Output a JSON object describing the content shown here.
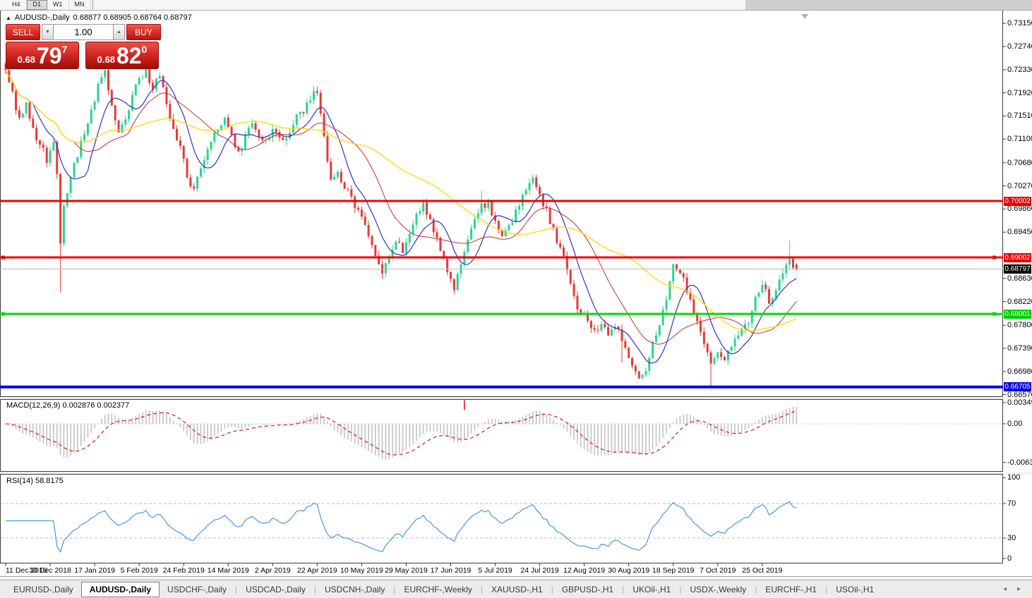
{
  "toolbar": {
    "timeframes": [
      "H4",
      "D1",
      "W1",
      "MN"
    ],
    "active": "D1"
  },
  "symbol_panel": {
    "collapse_icon": "▲",
    "title": "AUDUSD-,Daily",
    "ohlc_text": "0.68877 0.68905 0.68764 0.68797",
    "sell_label": "SELL",
    "buy_label": "BUY",
    "volume": "1.00",
    "sell_price": {
      "small": "0.68",
      "big": "79",
      "sup": "7"
    },
    "buy_price": {
      "small": "0.68",
      "big": "82",
      "sup": "0"
    }
  },
  "chart_data": {
    "type": "candlestick",
    "symbol": "AUDUSD",
    "timeframe": "Daily",
    "n_candles": 232,
    "last_candle": {
      "open": 0.68877,
      "high": 0.68905,
      "low": 0.68764,
      "close": 0.68797
    },
    "close_anchors": [
      [
        0,
        0.7232
      ],
      [
        2,
        0.7195
      ],
      [
        4,
        0.7148
      ],
      [
        6,
        0.7175
      ],
      [
        8,
        0.713
      ],
      [
        10,
        0.71
      ],
      [
        12,
        0.7068
      ],
      [
        14,
        0.7105
      ],
      [
        15,
        0.7048
      ],
      [
        16,
        0.6925
      ],
      [
        17,
        0.6992
      ],
      [
        19,
        0.7042
      ],
      [
        21,
        0.7078
      ],
      [
        23,
        0.7118
      ],
      [
        25,
        0.7162
      ],
      [
        27,
        0.7208
      ],
      [
        29,
        0.7232
      ],
      [
        31,
        0.717
      ],
      [
        33,
        0.7122
      ],
      [
        35,
        0.7145
      ],
      [
        37,
        0.7188
      ],
      [
        39,
        0.7218
      ],
      [
        41,
        0.7238
      ],
      [
        43,
        0.7198
      ],
      [
        45,
        0.7222
      ],
      [
        47,
        0.7172
      ],
      [
        49,
        0.7128
      ],
      [
        51,
        0.7098
      ],
      [
        53,
        0.7042
      ],
      [
        55,
        0.7022
      ],
      [
        57,
        0.7058
      ],
      [
        59,
        0.7092
      ],
      [
        61,
        0.7122
      ],
      [
        64,
        0.7148
      ],
      [
        66,
        0.7118
      ],
      [
        68,
        0.7088
      ],
      [
        70,
        0.7118
      ],
      [
        72,
        0.7138
      ],
      [
        75,
        0.7108
      ],
      [
        78,
        0.7128
      ],
      [
        81,
        0.7108
      ],
      [
        84,
        0.7135
      ],
      [
        86,
        0.7158
      ],
      [
        88,
        0.7175
      ],
      [
        91,
        0.7192
      ],
      [
        93,
        0.7115
      ],
      [
        95,
        0.7038
      ],
      [
        97,
        0.7052
      ],
      [
        99,
        0.7022
      ],
      [
        101,
        0.7008
      ],
      [
        103,
        0.6985
      ],
      [
        105,
        0.6958
      ],
      [
        107,
        0.6922
      ],
      [
        109,
        0.6888
      ],
      [
        110,
        0.6872
      ],
      [
        112,
        0.6902
      ],
      [
        114,
        0.6928
      ],
      [
        116,
        0.6908
      ],
      [
        118,
        0.6942
      ],
      [
        120,
        0.6978
      ],
      [
        122,
        0.6998
      ],
      [
        124,
        0.6968
      ],
      [
        126,
        0.6935
      ],
      [
        128,
        0.6898
      ],
      [
        130,
        0.6862
      ],
      [
        131,
        0.6842
      ],
      [
        133,
        0.6888
      ],
      [
        135,
        0.6932
      ],
      [
        137,
        0.6968
      ],
      [
        139,
        0.6996
      ],
      [
        141,
        0.6999
      ],
      [
        143,
        0.6965
      ],
      [
        145,
        0.6938
      ],
      [
        147,
        0.6958
      ],
      [
        149,
        0.6985
      ],
      [
        151,
        0.7012
      ],
      [
        153,
        0.7032
      ],
      [
        154,
        0.7042
      ],
      [
        156,
        0.7012
      ],
      [
        158,
        0.6988
      ],
      [
        160,
        0.6952
      ],
      [
        162,
        0.6918
      ],
      [
        164,
        0.6878
      ],
      [
        166,
        0.6832
      ],
      [
        168,
        0.6802
      ],
      [
        170,
        0.6788
      ],
      [
        172,
        0.6772
      ],
      [
        174,
        0.6782
      ],
      [
        176,
        0.6762
      ],
      [
        178,
        0.6778
      ],
      [
        180,
        0.6752
      ],
      [
        182,
        0.6722
      ],
      [
        184,
        0.6698
      ],
      [
        186,
        0.6692
      ],
      [
        188,
        0.6722
      ],
      [
        190,
        0.6762
      ],
      [
        192,
        0.6808
      ],
      [
        194,
        0.6858
      ],
      [
        195,
        0.6888
      ],
      [
        197,
        0.6872
      ],
      [
        199,
        0.6838
      ],
      [
        201,
        0.6802
      ],
      [
        203,
        0.6768
      ],
      [
        205,
        0.6732
      ],
      [
        206,
        0.6712
      ],
      [
        208,
        0.6732
      ],
      [
        210,
        0.6718
      ],
      [
        212,
        0.6742
      ],
      [
        214,
        0.6762
      ],
      [
        216,
        0.6782
      ],
      [
        218,
        0.6805
      ],
      [
        220,
        0.6838
      ],
      [
        221,
        0.6852
      ],
      [
        223,
        0.6818
      ],
      [
        225,
        0.6842
      ],
      [
        227,
        0.6872
      ],
      [
        229,
        0.6898
      ],
      [
        230,
        0.6882
      ],
      [
        231,
        0.68797
      ]
    ],
    "wick_overrides": {
      "16": {
        "low": 0.6838
      },
      "110": {
        "low": 0.6862
      },
      "122": {
        "high": 0.7003
      },
      "131": {
        "low": 0.6835
      },
      "139": {
        "high": 0.7018
      },
      "154": {
        "high": 0.7048
      },
      "180": {
        "low": 0.6714
      },
      "186": {
        "low": 0.6689
      },
      "206": {
        "low": 0.6671
      },
      "229": {
        "high": 0.693
      }
    },
    "moving_averages": [
      {
        "period": 9,
        "color": "#3232c8",
        "width": 1.2
      },
      {
        "period": 21,
        "color": "#c03030",
        "width": 1
      },
      {
        "period": 50,
        "color": "#ffd700",
        "width": 1.3
      }
    ],
    "levels": [
      {
        "price": 0.70002,
        "label": "0.70002",
        "line_color": "#f00000",
        "line_width": 3,
        "badge_color": "#e80000",
        "handles": false
      },
      {
        "price": 0.69002,
        "label": "0.69002",
        "line_color": "#f00000",
        "line_width": 3,
        "badge_color": "#e80000",
        "handles": true
      },
      {
        "price": 0.68797,
        "label": "0.68797",
        "line_color": "#b9b9b9",
        "line_width": 1,
        "badge_color": "#000000",
        "handles": false
      },
      {
        "price": 0.68001,
        "label": "0.68001",
        "line_color": "#00dd00",
        "line_width": 3,
        "badge_color": "#00cc00",
        "handles": true
      },
      {
        "price": 0.66705,
        "label": "0.66705",
        "line_color": "#0000ee",
        "line_width": 4,
        "badge_color": "#0000dd",
        "handles": false
      }
    ],
    "price_axis_ticks": [
      "0.73150",
      "0.72740",
      "0.72330",
      "0.71920",
      "0.71510",
      "0.71100",
      "0.70680",
      "0.70270",
      "0.69860",
      "0.69450",
      "0.68630",
      "0.68220",
      "0.67800",
      "0.67390",
      "0.66980",
      "0.66570"
    ],
    "date_ticks": [
      "11 Dec 2018",
      "30 Dec 2018",
      "17 Jan 2019",
      "5 Feb 2019",
      "24 Feb 2019",
      "14 Mar 2019",
      "2 Apr 2019",
      "22 Apr 2019",
      "10 May 2019",
      "29 May 2019",
      "17 Jun 2019",
      "5 Jul 2019",
      "24 Jul 2019",
      "12 Aug 2019",
      "30 Aug 2019",
      "18 Sep 2019",
      "7 Oct 2019",
      "25 Oct 2019"
    ],
    "candles_per_date_tick": 13,
    "macd": {
      "label": "MACD(12,26,9) 0.002876 0.002377",
      "fast": 12,
      "slow": 26,
      "signal": 9,
      "value": 0.002876,
      "signal_value": 0.002377,
      "axis": [
        "0.00349",
        "0.00",
        "-0.00637"
      ],
      "histogram_color": "#c2c2c2",
      "signal_color": "#d41a1a",
      "red_mark_index": 134
    },
    "rsi": {
      "label": "RSI(14) 58.8175",
      "period": 14,
      "value": 58.8175,
      "axis": [
        "100",
        "70",
        "30",
        "0"
      ],
      "levels": [
        70,
        30
      ],
      "line_color": "#3a90e0"
    },
    "candle_up_color": "#2bd392",
    "candle_down_color": "#e43a3a"
  },
  "tabs": {
    "items": [
      "EURUSD-,Daily",
      "AUDUSD-,Daily",
      "USDCHF-,Daily",
      "USDCAD-,Daily",
      "USDCNH-,Daily",
      "EURCHF-,Weekly",
      "XAUUSD-,H1",
      "GBPUSD-,H1",
      "UKOil-,H1",
      "USDX-,Weekly",
      "EURCHF-,H1",
      "USOil-,H1"
    ],
    "active_index": 1,
    "nav_icons": "◂ ▸"
  }
}
